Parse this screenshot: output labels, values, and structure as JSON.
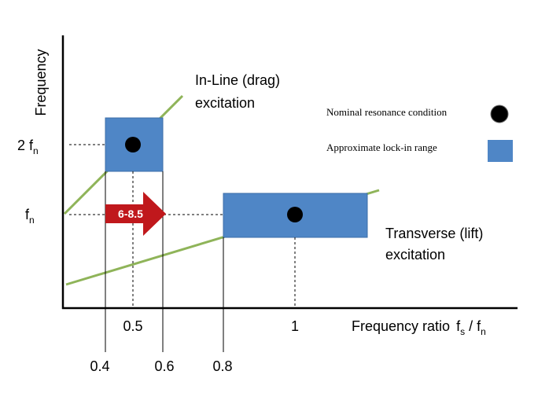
{
  "axes": {
    "y_title": "Frequency",
    "y_labels": [
      {
        "main": "2 f",
        "sub": "n"
      },
      {
        "main": "f",
        "sub": "n"
      }
    ],
    "x_title": {
      "text": "Frequency ratio",
      "f1": "f",
      "s1": "s",
      "slash": " / f",
      "s2": "n"
    },
    "x_labels_upper": [
      "0.5",
      "1"
    ],
    "x_labels_lower": [
      "0.4",
      "0.6",
      "0.8"
    ]
  },
  "annotations": {
    "inline": [
      "In-Line (drag)",
      "excitation"
    ],
    "transverse": [
      "Transverse (lift)",
      "excitation"
    ],
    "arrow": "6-8.5"
  },
  "legend": {
    "items": [
      "Nominal resonance condition",
      "Approximate lock-in range"
    ]
  }
}
